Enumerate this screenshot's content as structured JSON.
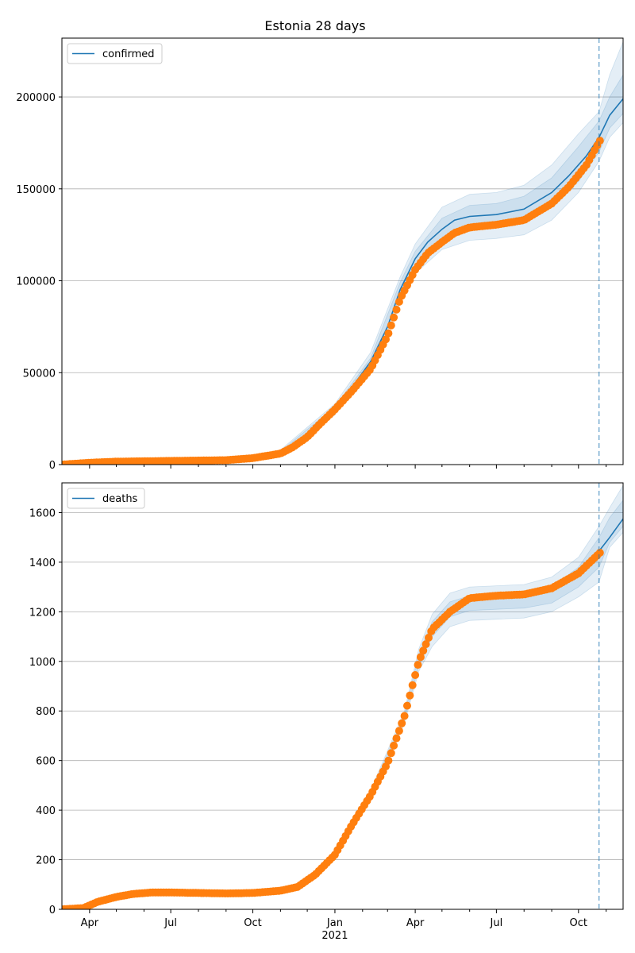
{
  "figure": {
    "title": "Estonia 28 days"
  },
  "colors": {
    "model_line": "#1f77b4",
    "observed": "#ff7f0e",
    "band": "#1f77b4",
    "grid": "#b0b0b0",
    "forecast_line": "#1f77b4"
  },
  "chart_data": [
    {
      "type": "line",
      "legend": [
        "confirmed"
      ],
      "legend_position": "top-left",
      "grid": "horizontal",
      "xlim": [
        "2020-03-01",
        "2021-11-20"
      ],
      "ylim": [
        0,
        232000
      ],
      "x_ticks": [
        "Apr",
        "Jul",
        "Oct",
        "Jan",
        "Apr",
        "Jul",
        "Oct"
      ],
      "y_ticks": [
        "0",
        "50000",
        "100000",
        "150000",
        "200000"
      ],
      "forecast_start": "2021-10-24",
      "series": [
        {
          "name": "confirmed",
          "kind": "model",
          "x": [
            "2020-03-01",
            "2020-10-01",
            "2020-11-01",
            "2020-12-01",
            "2021-01-01",
            "2021-01-20",
            "2021-02-10",
            "2021-03-01",
            "2021-03-15",
            "2021-04-01",
            "2021-04-15",
            "2021-05-01",
            "2021-05-15",
            "2021-06-01",
            "2021-07-01",
            "2021-08-01",
            "2021-09-01",
            "2021-09-20",
            "2021-10-10",
            "2021-10-24",
            "2021-11-05",
            "2021-11-20"
          ],
          "values": [
            0,
            3500,
            6500,
            15000,
            30000,
            42000,
            56000,
            75000,
            95000,
            112000,
            121000,
            128000,
            133000,
            135000,
            136000,
            139000,
            148000,
            157000,
            168000,
            178000,
            190000,
            199000
          ]
        },
        {
          "name": "confirmed",
          "kind": "observed",
          "x": [
            "2020-03-01",
            "2020-04-01",
            "2020-05-01",
            "2020-07-01",
            "2020-09-01",
            "2020-10-01",
            "2020-11-01",
            "2020-11-15",
            "2020-12-01",
            "2020-12-15",
            "2021-01-01",
            "2021-01-20",
            "2021-02-10",
            "2021-03-01",
            "2021-03-15",
            "2021-04-01",
            "2021-04-15",
            "2021-05-01",
            "2021-05-15",
            "2021-06-01",
            "2021-07-01",
            "2021-08-01",
            "2021-09-01",
            "2021-09-20",
            "2021-10-10",
            "2021-10-27"
          ],
          "values": [
            0,
            1000,
            1600,
            2000,
            2400,
            3500,
            6000,
            9500,
            15000,
            22000,
            30000,
            40000,
            52000,
            70000,
            90000,
            106000,
            115000,
            121000,
            126000,
            129000,
            130500,
            133000,
            142000,
            151000,
            163000,
            178000
          ]
        }
      ],
      "bands": [
        {
          "x": [
            "2020-11-01",
            "2021-01-01",
            "2021-02-10",
            "2021-03-15",
            "2021-04-01",
            "2021-05-01",
            "2021-06-01",
            "2021-07-01",
            "2021-08-01",
            "2021-09-01",
            "2021-10-01",
            "2021-10-24",
            "2021-11-05",
            "2021-11-20"
          ],
          "lower": [
            5000,
            27000,
            52000,
            88000,
            104000,
            117000,
            122000,
            123000,
            125000,
            133000,
            148000,
            165000,
            178000,
            186000
          ],
          "upper": [
            8000,
            33000,
            61000,
            102000,
            120000,
            140000,
            147000,
            148000,
            152000,
            163000,
            180000,
            192000,
            212000,
            230000
          ]
        },
        {
          "x": [
            "2020-11-01",
            "2021-01-01",
            "2021-02-10",
            "2021-03-15",
            "2021-04-01",
            "2021-05-01",
            "2021-06-01",
            "2021-07-01",
            "2021-08-01",
            "2021-09-01",
            "2021-10-01",
            "2021-10-24",
            "2021-11-05",
            "2021-11-20"
          ],
          "lower": [
            5800,
            28500,
            54000,
            91000,
            108000,
            122000,
            128000,
            129000,
            131000,
            140000,
            154000,
            170000,
            183000,
            191000
          ],
          "upper": [
            7200,
            31500,
            58000,
            99000,
            116000,
            134000,
            141000,
            142000,
            146000,
            156000,
            173000,
            187000,
            200000,
            212000
          ]
        }
      ]
    },
    {
      "type": "line",
      "legend": [
        "deaths"
      ],
      "legend_position": "top-left",
      "grid": "horizontal",
      "xlim": [
        "2020-03-01",
        "2021-11-20"
      ],
      "ylim": [
        0,
        1720
      ],
      "x_ticks": [
        "Apr",
        "Jul",
        "Oct",
        "Jan",
        "Apr",
        "Jul",
        "Oct"
      ],
      "x_year_label": "2021",
      "y_ticks": [
        "0",
        "200",
        "400",
        "600",
        "800",
        "1000",
        "1200",
        "1400",
        "1600"
      ],
      "forecast_start": "2021-10-24",
      "series": [
        {
          "name": "deaths",
          "kind": "model",
          "x": [
            "2021-10-24",
            "2021-11-05",
            "2021-11-20"
          ],
          "values": [
            1445,
            1500,
            1575
          ]
        },
        {
          "name": "deaths",
          "kind": "observed",
          "x": [
            "2020-03-01",
            "2020-03-25",
            "2020-04-10",
            "2020-05-01",
            "2020-05-20",
            "2020-06-10",
            "2020-07-01",
            "2020-08-01",
            "2020-09-01",
            "2020-10-01",
            "2020-11-01",
            "2020-11-20",
            "2020-12-10",
            "2021-01-01",
            "2021-01-20",
            "2021-02-10",
            "2021-03-01",
            "2021-03-20",
            "2021-04-05",
            "2021-04-20",
            "2021-05-10",
            "2021-06-01",
            "2021-07-01",
            "2021-08-01",
            "2021-09-01",
            "2021-10-01",
            "2021-10-27"
          ],
          "values": [
            0,
            5,
            30,
            50,
            62,
            68,
            68,
            66,
            64,
            66,
            75,
            90,
            140,
            220,
            340,
            460,
            590,
            780,
            1000,
            1130,
            1200,
            1255,
            1265,
            1270,
            1295,
            1355,
            1445
          ]
        }
      ],
      "bands": [
        {
          "x": [
            "2021-02-10",
            "2021-03-20",
            "2021-04-05",
            "2021-04-20",
            "2021-05-10",
            "2021-06-01",
            "2021-07-01",
            "2021-08-01",
            "2021-09-01",
            "2021-10-01",
            "2021-10-24",
            "2021-11-05",
            "2021-11-20"
          ],
          "lower": [
            440,
            750,
            960,
            1060,
            1140,
            1165,
            1170,
            1175,
            1200,
            1260,
            1320,
            1460,
            1520
          ],
          "upper": [
            480,
            800,
            1050,
            1190,
            1275,
            1300,
            1305,
            1310,
            1340,
            1420,
            1545,
            1620,
            1710
          ]
        },
        {
          "x": [
            "2021-02-10",
            "2021-03-20",
            "2021-04-05",
            "2021-04-20",
            "2021-05-10",
            "2021-06-01",
            "2021-07-01",
            "2021-08-01",
            "2021-09-01",
            "2021-10-01",
            "2021-10-24",
            "2021-11-05",
            "2021-11-20"
          ],
          "lower": [
            450,
            765,
            980,
            1100,
            1180,
            1205,
            1210,
            1215,
            1235,
            1300,
            1380,
            1480,
            1545
          ],
          "upper": [
            470,
            785,
            1030,
            1160,
            1240,
            1265,
            1270,
            1275,
            1300,
            1380,
            1500,
            1580,
            1650
          ]
        }
      ]
    }
  ]
}
